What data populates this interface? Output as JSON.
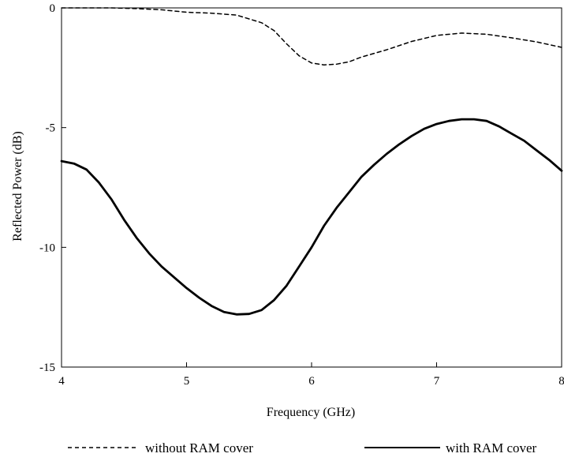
{
  "chart_data": {
    "type": "line",
    "title": "",
    "xlabel": "Frequency (GHz)",
    "ylabel": "Reflected Power (dB)",
    "xlim": [
      4,
      8
    ],
    "ylim": [
      -15,
      0
    ],
    "xticks": [
      4,
      5,
      6,
      7,
      8
    ],
    "yticks": [
      0,
      -5,
      -10,
      -15
    ],
    "xtick_labels": [
      "4",
      "5",
      "6",
      "7",
      "8"
    ],
    "ytick_labels": [
      "0",
      "-5",
      "-10",
      "-15"
    ],
    "grid": false,
    "legend_position": "bottom",
    "series": [
      {
        "name": "without RAM cover",
        "style": "dashed",
        "color": "#000000",
        "x": [
          4.0,
          4.2,
          4.4,
          4.6,
          4.8,
          5.0,
          5.2,
          5.4,
          5.6,
          5.7,
          5.8,
          5.9,
          6.0,
          6.1,
          6.2,
          6.3,
          6.4,
          6.6,
          6.8,
          7.0,
          7.2,
          7.4,
          7.6,
          7.8,
          8.0
        ],
        "y": [
          0.0,
          0.0,
          0.0,
          -0.03,
          -0.08,
          -0.18,
          -0.22,
          -0.3,
          -0.62,
          -0.95,
          -1.5,
          -2.0,
          -2.3,
          -2.38,
          -2.35,
          -2.25,
          -2.05,
          -1.75,
          -1.4,
          -1.15,
          -1.05,
          -1.1,
          -1.25,
          -1.42,
          -1.65
        ]
      },
      {
        "name": "with RAM cover",
        "style": "solid",
        "color": "#000000",
        "x": [
          4.0,
          4.1,
          4.2,
          4.3,
          4.4,
          4.5,
          4.6,
          4.7,
          4.8,
          4.9,
          5.0,
          5.1,
          5.2,
          5.3,
          5.4,
          5.5,
          5.6,
          5.7,
          5.8,
          5.9,
          6.0,
          6.1,
          6.2,
          6.3,
          6.4,
          6.5,
          6.6,
          6.7,
          6.8,
          6.9,
          7.0,
          7.1,
          7.2,
          7.3,
          7.4,
          7.5,
          7.6,
          7.7,
          7.8,
          7.9,
          8.0
        ],
        "y": [
          -6.4,
          -6.5,
          -6.75,
          -7.3,
          -8.0,
          -8.85,
          -9.6,
          -10.25,
          -10.8,
          -11.25,
          -11.7,
          -12.1,
          -12.45,
          -12.7,
          -12.8,
          -12.78,
          -12.62,
          -12.2,
          -11.6,
          -10.8,
          -10.0,
          -9.1,
          -8.35,
          -7.7,
          -7.05,
          -6.55,
          -6.1,
          -5.7,
          -5.35,
          -5.05,
          -4.85,
          -4.72,
          -4.65,
          -4.65,
          -4.72,
          -4.95,
          -5.25,
          -5.55,
          -5.95,
          -6.35,
          -6.8
        ]
      }
    ]
  }
}
